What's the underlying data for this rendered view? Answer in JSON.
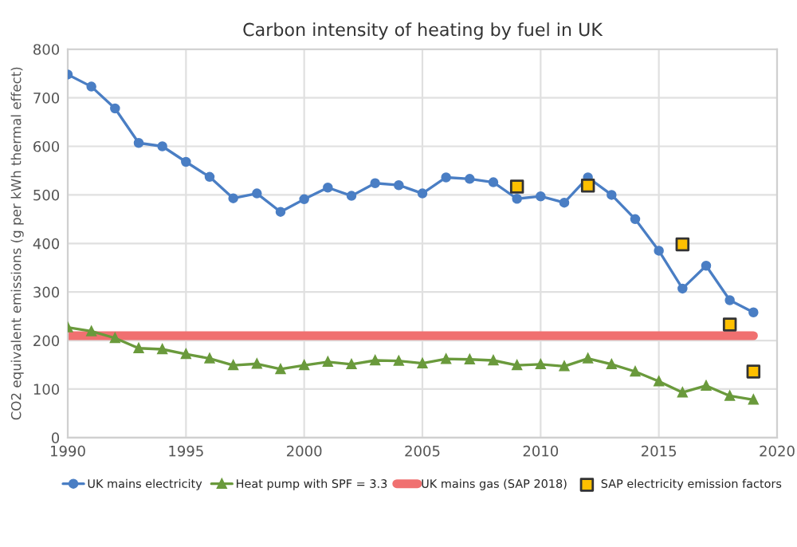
{
  "chart_data": {
    "type": "line",
    "title": "Carbon intensity of heating by fuel in UK",
    "ylabel": "CO2 equivalent emissions (g per kWh thermal effect)",
    "xlim": [
      1990,
      2020
    ],
    "xticks": [
      1990,
      1995,
      2000,
      2005,
      2010,
      2015,
      2020
    ],
    "ylim": [
      0,
      800
    ],
    "yticks": [
      0,
      100,
      200,
      300,
      400,
      500,
      600,
      700,
      800
    ],
    "grid": true,
    "legend": "bottom",
    "series": [
      {
        "name": "UK mains electricity",
        "marker": "circle",
        "color": "#4a7ec4",
        "x": [
          1990,
          1991,
          1992,
          1993,
          1994,
          1995,
          1996,
          1997,
          1998,
          1999,
          2000,
          2001,
          2002,
          2003,
          2004,
          2005,
          2006,
          2007,
          2008,
          2009,
          2010,
          2011,
          2012,
          2013,
          2014,
          2015,
          2016,
          2017,
          2018,
          2019
        ],
        "values": [
          748,
          723,
          678,
          607,
          600,
          568,
          537,
          493,
          503,
          465,
          491,
          515,
          498,
          524,
          520,
          503,
          536,
          533,
          526,
          492,
          497,
          484,
          536,
          500,
          450,
          385,
          307,
          354,
          283,
          258
        ]
      },
      {
        "name": "Heat pump with SPF = 3.3",
        "marker": "triangle",
        "color": "#6a9a3c",
        "x": [
          1990,
          1991,
          1992,
          1993,
          1994,
          1995,
          1996,
          1997,
          1998,
          1999,
          2000,
          2001,
          2002,
          2003,
          2004,
          2005,
          2006,
          2007,
          2008,
          2009,
          2010,
          2011,
          2012,
          2013,
          2014,
          2015,
          2016,
          2017,
          2018,
          2019
        ],
        "values": [
          227,
          219,
          205,
          184,
          182,
          172,
          163,
          149,
          152,
          141,
          149,
          156,
          151,
          159,
          158,
          153,
          162,
          161,
          159,
          149,
          151,
          147,
          163,
          151,
          136,
          116,
          93,
          107,
          86,
          78
        ]
      },
      {
        "name": "UK mains gas (SAP 2018)",
        "marker": "none",
        "color": "#f07070",
        "x": [
          1990,
          2019
        ],
        "values": [
          210,
          210
        ]
      },
      {
        "name": "SAP electricity emission factors",
        "type": "scatter",
        "marker": "square",
        "color": "#ffc000",
        "x": [
          2009,
          2012,
          2016,
          2018,
          2019
        ],
        "values": [
          517,
          519,
          398,
          233,
          136
        ]
      }
    ]
  }
}
